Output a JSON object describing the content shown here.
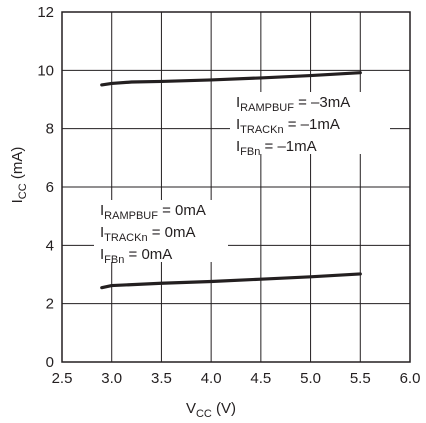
{
  "chart_data": {
    "type": "line",
    "title": "",
    "xlabel": {
      "main": "V",
      "sub": "CC",
      "unit": "(V)"
    },
    "ylabel": {
      "main": "I",
      "sub": "CC",
      "unit": "(mA)"
    },
    "xlim": [
      2.5,
      6.0
    ],
    "ylim": [
      0,
      12
    ],
    "x_ticks": [
      2.5,
      3.0,
      3.5,
      4.0,
      4.5,
      5.0,
      5.5,
      6.0
    ],
    "x_tick_labels": [
      "2.5",
      "3.0",
      "3.5",
      "4.0",
      "4.5",
      "5.0",
      "5.5",
      "6.0"
    ],
    "y_ticks": [
      0,
      2,
      4,
      6,
      8,
      10,
      12
    ],
    "y_tick_labels": [
      "0",
      "2",
      "4",
      "6",
      "8",
      "10",
      "12"
    ],
    "grid": true,
    "series": [
      {
        "x": [
          2.9,
          3.0,
          3.2,
          3.5,
          4.0,
          4.5,
          5.0,
          5.5
        ],
        "y": [
          9.5,
          9.55,
          9.6,
          9.62,
          9.67,
          9.74,
          9.82,
          9.92
        ]
      },
      {
        "x": [
          2.9,
          3.0,
          3.5,
          4.0,
          4.5,
          5.0,
          5.5
        ],
        "y": [
          2.55,
          2.62,
          2.7,
          2.76,
          2.84,
          2.92,
          3.02
        ]
      }
    ],
    "annotations": [
      {
        "lines": [
          {
            "main": "I",
            "sub": "RAMPBUF",
            "rest": " = –3mA"
          },
          {
            "main": "I",
            "sub": "TRACKn",
            "rest": " = –1mA"
          },
          {
            "main": "I",
            "sub": "FBn",
            "rest": " = –1mA"
          }
        ]
      },
      {
        "lines": [
          {
            "main": "I",
            "sub": "RAMPBUF",
            "rest": " = 0mA"
          },
          {
            "main": "I",
            "sub": "TRACKn",
            "rest": " = 0mA"
          },
          {
            "main": "I",
            "sub": "FBn",
            "rest": " = 0mA"
          }
        ]
      }
    ],
    "colors": {
      "line": "#231f20",
      "grid": "#231f20",
      "background": "#ffffff"
    }
  }
}
